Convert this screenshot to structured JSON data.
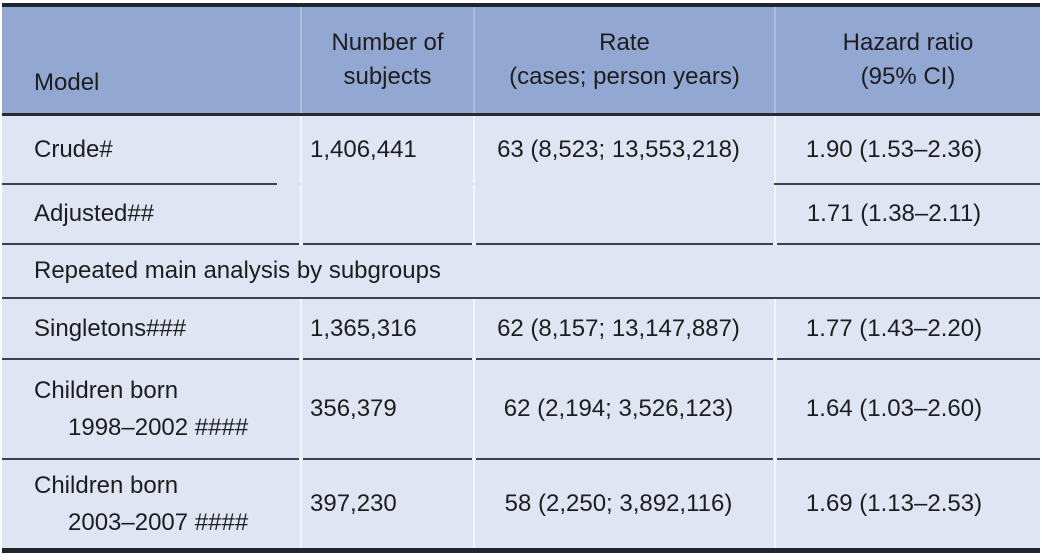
{
  "table": {
    "header": {
      "model": "Model",
      "subjects": "Number of\nsubjects",
      "rate": "Rate\n(cases; person years)",
      "hazard": "Hazard ratio\n(95% CI)"
    },
    "section_row": {
      "label": "Repeated main analysis by subgroups"
    },
    "rows": [
      {
        "model_line1": "Crude#",
        "model_line2": "",
        "subjects": "1,406,441",
        "rate": "63 (8,523; 13,553,218)",
        "hazard": "1.90 (1.53–2.36)"
      },
      {
        "model_line1": "Adjusted##",
        "model_line2": "",
        "subjects": "",
        "rate": "",
        "hazard": "1.71 (1.38–2.11)"
      },
      {
        "model_line1": "Singletons###",
        "model_line2": "",
        "subjects": "1,365,316",
        "rate": "62 (8,157; 13,147,887)",
        "hazard": "1.77 (1.43–2.20)"
      },
      {
        "model_line1": "Children born",
        "model_line2": "1998–2002 ####",
        "subjects": "356,379",
        "rate": "62 (2,194; 3,526,123)",
        "hazard": "1.64 (1.03–2.60)"
      },
      {
        "model_line1": "Children born",
        "model_line2": "2003–2007 ####",
        "subjects": "397,230",
        "rate": "58 (2,250; 3,892,116)",
        "hazard": "1.69 (1.13–2.53)"
      }
    ],
    "colors": {
      "header_bg": "#92a7d1",
      "body_bg": "#dfe5f3",
      "border_heavy": "#20242c",
      "rule_dark": "#3c414b",
      "divider_light": "#f2f5fb",
      "text": "#1d1d1f"
    }
  }
}
